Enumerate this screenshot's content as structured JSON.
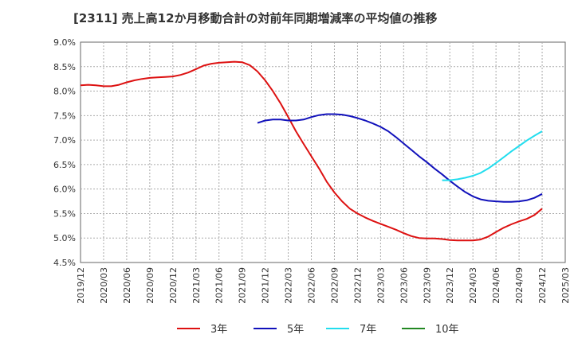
{
  "chart_data": {
    "type": "line",
    "title": "[2311]  売上高12か月移動合計の対前年同期増減率の平均値の推移",
    "xlabel": "",
    "ylabel": "",
    "x_ticks": [
      "2019/12",
      "2020/03",
      "2020/06",
      "2020/09",
      "2020/12",
      "2021/03",
      "2021/06",
      "2021/09",
      "2021/12",
      "2022/03",
      "2022/06",
      "2022/09",
      "2022/12",
      "2023/03",
      "2023/06",
      "2023/09",
      "2023/12",
      "2024/03",
      "2024/06",
      "2024/09",
      "2024/12",
      "2025/03"
    ],
    "y_ticks": [
      "9.0%",
      "8.5%",
      "8.0%",
      "7.5%",
      "7.0%",
      "6.5%",
      "6.0%",
      "5.5%",
      "5.0%",
      "4.5%"
    ],
    "ylim": [
      4.5,
      9.0
    ],
    "grid": true,
    "legend_position": "bottom",
    "series": [
      {
        "name": "3年",
        "color": "#dd1111",
        "points": [
          [
            "2019/12",
            8.12
          ],
          [
            "2020/01",
            8.13
          ],
          [
            "2020/02",
            8.12
          ],
          [
            "2020/03",
            8.1
          ],
          [
            "2020/04",
            8.1
          ],
          [
            "2020/05",
            8.13
          ],
          [
            "2020/06",
            8.18
          ],
          [
            "2020/07",
            8.22
          ],
          [
            "2020/08",
            8.25
          ],
          [
            "2020/09",
            8.27
          ],
          [
            "2020/10",
            8.28
          ],
          [
            "2020/11",
            8.29
          ],
          [
            "2020/12",
            8.3
          ],
          [
            "2021/01",
            8.33
          ],
          [
            "2021/02",
            8.38
          ],
          [
            "2021/03",
            8.45
          ],
          [
            "2021/04",
            8.52
          ],
          [
            "2021/05",
            8.56
          ],
          [
            "2021/06",
            8.58
          ],
          [
            "2021/07",
            8.59
          ],
          [
            "2021/08",
            8.6
          ],
          [
            "2021/09",
            8.59
          ],
          [
            "2021/10",
            8.53
          ],
          [
            "2021/11",
            8.4
          ],
          [
            "2021/12",
            8.22
          ],
          [
            "2022/01",
            8.0
          ],
          [
            "2022/02",
            7.75
          ],
          [
            "2022/03",
            7.47
          ],
          [
            "2022/04",
            7.18
          ],
          [
            "2022/05",
            6.92
          ],
          [
            "2022/06",
            6.67
          ],
          [
            "2022/07",
            6.42
          ],
          [
            "2022/08",
            6.15
          ],
          [
            "2022/09",
            5.93
          ],
          [
            "2022/10",
            5.75
          ],
          [
            "2022/11",
            5.6
          ],
          [
            "2022/12",
            5.5
          ],
          [
            "2023/01",
            5.42
          ],
          [
            "2023/02",
            5.35
          ],
          [
            "2023/03",
            5.29
          ],
          [
            "2023/04",
            5.23
          ],
          [
            "2023/05",
            5.17
          ],
          [
            "2023/06",
            5.1
          ],
          [
            "2023/07",
            5.04
          ],
          [
            "2023/08",
            5.0
          ],
          [
            "2023/09",
            4.99
          ],
          [
            "2023/10",
            4.99
          ],
          [
            "2023/11",
            4.98
          ],
          [
            "2023/12",
            4.96
          ],
          [
            "2024/01",
            4.95
          ],
          [
            "2024/02",
            4.95
          ],
          [
            "2024/03",
            4.95
          ],
          [
            "2024/04",
            4.97
          ],
          [
            "2024/05",
            5.03
          ],
          [
            "2024/06",
            5.12
          ],
          [
            "2024/07",
            5.21
          ],
          [
            "2024/08",
            5.28
          ],
          [
            "2024/09",
            5.34
          ],
          [
            "2024/10",
            5.39
          ],
          [
            "2024/11",
            5.47
          ],
          [
            "2024/12",
            5.6
          ]
        ]
      },
      {
        "name": "5年",
        "color": "#1111bb",
        "points": [
          [
            "2021/11",
            7.35
          ],
          [
            "2021/12",
            7.4
          ],
          [
            "2022/01",
            7.42
          ],
          [
            "2022/02",
            7.42
          ],
          [
            "2022/03",
            7.4
          ],
          [
            "2022/04",
            7.4
          ],
          [
            "2022/05",
            7.42
          ],
          [
            "2022/06",
            7.47
          ],
          [
            "2022/07",
            7.51
          ],
          [
            "2022/08",
            7.53
          ],
          [
            "2022/09",
            7.53
          ],
          [
            "2022/10",
            7.52
          ],
          [
            "2022/11",
            7.49
          ],
          [
            "2022/12",
            7.45
          ],
          [
            "2023/01",
            7.4
          ],
          [
            "2023/02",
            7.34
          ],
          [
            "2023/03",
            7.27
          ],
          [
            "2023/04",
            7.18
          ],
          [
            "2023/05",
            7.06
          ],
          [
            "2023/06",
            6.93
          ],
          [
            "2023/07",
            6.8
          ],
          [
            "2023/08",
            6.67
          ],
          [
            "2023/09",
            6.55
          ],
          [
            "2023/10",
            6.42
          ],
          [
            "2023/11",
            6.3
          ],
          [
            "2023/12",
            6.17
          ],
          [
            "2024/01",
            6.05
          ],
          [
            "2024/02",
            5.94
          ],
          [
            "2024/03",
            5.85
          ],
          [
            "2024/04",
            5.79
          ],
          [
            "2024/05",
            5.76
          ],
          [
            "2024/06",
            5.75
          ],
          [
            "2024/07",
            5.74
          ],
          [
            "2024/08",
            5.74
          ],
          [
            "2024/09",
            5.75
          ],
          [
            "2024/10",
            5.77
          ],
          [
            "2024/11",
            5.82
          ],
          [
            "2024/12",
            5.9
          ]
        ]
      },
      {
        "name": "7年",
        "color": "#22ddee",
        "points": [
          [
            "2023/11",
            6.18
          ],
          [
            "2023/12",
            6.18
          ],
          [
            "2024/01",
            6.2
          ],
          [
            "2024/02",
            6.23
          ],
          [
            "2024/03",
            6.27
          ],
          [
            "2024/04",
            6.33
          ],
          [
            "2024/05",
            6.42
          ],
          [
            "2024/06",
            6.53
          ],
          [
            "2024/07",
            6.65
          ],
          [
            "2024/08",
            6.77
          ],
          [
            "2024/09",
            6.88
          ],
          [
            "2024/10",
            6.99
          ],
          [
            "2024/11",
            7.09
          ],
          [
            "2024/12",
            7.18
          ]
        ]
      },
      {
        "name": "10年",
        "color": "#228822",
        "points": []
      }
    ]
  }
}
